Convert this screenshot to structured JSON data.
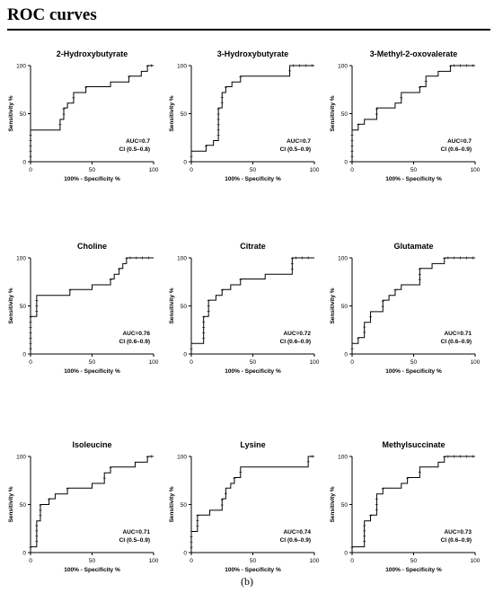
{
  "header": {
    "title": "ROC curves"
  },
  "caption": "(b)",
  "chart_data": [
    {
      "type": "line",
      "title": "2-Hydroxybutyrate",
      "xlabel": "100% - Specificity %",
      "ylabel": "Sensitivity %",
      "xlim": [
        0,
        100
      ],
      "ylim": [
        0,
        100
      ],
      "xticks": [
        0,
        50,
        100
      ],
      "yticks": [
        0,
        50,
        100
      ],
      "annotation": [
        "AUC=0.7",
        "CI (0.5–0.8)"
      ],
      "series": [
        {
          "x": [
            0,
            0,
            24,
            24,
            27,
            27,
            30,
            30,
            35,
            35,
            45,
            45,
            65,
            65,
            80,
            80,
            90,
            90,
            95,
            95,
            100
          ],
          "y": [
            0,
            33,
            33,
            44,
            44,
            56,
            56,
            61,
            61,
            72,
            72,
            78,
            78,
            83,
            83,
            89,
            89,
            94,
            94,
            100,
            100
          ]
        }
      ]
    },
    {
      "type": "line",
      "title": "3-Hydroxybutyrate",
      "xlabel": "100% - Specificity %",
      "ylabel": "Sensitivity %",
      "xlim": [
        0,
        100
      ],
      "ylim": [
        0,
        100
      ],
      "xticks": [
        0,
        50,
        100
      ],
      "yticks": [
        0,
        50,
        100
      ],
      "annotation": [
        "AUC=0.7",
        "CI (0.5–0.9)"
      ],
      "series": [
        {
          "x": [
            0,
            0,
            12,
            12,
            18,
            18,
            22,
            22,
            25,
            25,
            28,
            28,
            33,
            33,
            40,
            40,
            80,
            80,
            100
          ],
          "y": [
            0,
            11,
            11,
            17,
            17,
            22,
            22,
            56,
            56,
            72,
            72,
            78,
            78,
            83,
            83,
            89,
            89,
            100,
            100
          ]
        }
      ]
    },
    {
      "type": "line",
      "title": "3-Methyl-2-oxovalerate",
      "xlabel": "100% - Specificity %",
      "ylabel": "Sensitivity %",
      "xlim": [
        0,
        100
      ],
      "ylim": [
        0,
        100
      ],
      "xticks": [
        0,
        50,
        100
      ],
      "yticks": [
        0,
        50,
        100
      ],
      "annotation": [
        "AUC=0.7",
        "CI (0.6–0.9)"
      ],
      "series": [
        {
          "x": [
            0,
            0,
            5,
            5,
            10,
            10,
            20,
            20,
            35,
            35,
            40,
            40,
            55,
            55,
            60,
            60,
            70,
            70,
            80,
            80,
            100
          ],
          "y": [
            0,
            33,
            33,
            39,
            39,
            44,
            44,
            56,
            56,
            61,
            61,
            72,
            72,
            78,
            78,
            89,
            89,
            94,
            94,
            100,
            100
          ]
        }
      ]
    },
    {
      "type": "line",
      "title": "Choline",
      "xlabel": "100% - Specificity %",
      "ylabel": "Sensitivity %",
      "xlim": [
        0,
        100
      ],
      "ylim": [
        0,
        100
      ],
      "xticks": [
        0,
        50,
        100
      ],
      "yticks": [
        0,
        50,
        100
      ],
      "annotation": [
        "AUC=0.76",
        "CI (0.6–0.9)"
      ],
      "series": [
        {
          "x": [
            0,
            0,
            5,
            5,
            32,
            32,
            50,
            50,
            65,
            65,
            68,
            68,
            72,
            72,
            75,
            75,
            78,
            78,
            100
          ],
          "y": [
            0,
            39,
            39,
            61,
            61,
            67,
            67,
            72,
            72,
            78,
            78,
            83,
            83,
            89,
            89,
            94,
            94,
            100,
            100
          ]
        }
      ]
    },
    {
      "type": "line",
      "title": "Citrate",
      "xlabel": "100% - Specificity %",
      "ylabel": "Sensitivity %",
      "xlim": [
        0,
        100
      ],
      "ylim": [
        0,
        100
      ],
      "xticks": [
        0,
        50,
        100
      ],
      "yticks": [
        0,
        50,
        100
      ],
      "annotation": [
        "AUC=0.72",
        "CI (0.6–0.9)"
      ],
      "series": [
        {
          "x": [
            0,
            0,
            10,
            10,
            14,
            14,
            20,
            20,
            25,
            25,
            32,
            32,
            40,
            40,
            60,
            60,
            82,
            82,
            100
          ],
          "y": [
            0,
            11,
            11,
            39,
            39,
            56,
            56,
            61,
            61,
            67,
            67,
            72,
            72,
            78,
            78,
            83,
            83,
            100,
            100
          ]
        }
      ]
    },
    {
      "type": "line",
      "title": "Glutamate",
      "xlabel": "100% - Specificity %",
      "ylabel": "Sensitivity %",
      "xlim": [
        0,
        100
      ],
      "ylim": [
        0,
        100
      ],
      "xticks": [
        0,
        50,
        100
      ],
      "yticks": [
        0,
        50,
        100
      ],
      "annotation": [
        "AUC=0.71",
        "CI (0.6–0.9)"
      ],
      "series": [
        {
          "x": [
            0,
            0,
            5,
            5,
            10,
            10,
            15,
            15,
            25,
            25,
            30,
            30,
            35,
            35,
            40,
            40,
            55,
            55,
            65,
            65,
            75,
            75,
            100
          ],
          "y": [
            0,
            11,
            11,
            17,
            17,
            33,
            33,
            44,
            44,
            56,
            56,
            61,
            61,
            67,
            67,
            72,
            72,
            89,
            89,
            94,
            94,
            100,
            100
          ]
        }
      ]
    },
    {
      "type": "line",
      "title": "Isoleucine",
      "xlabel": "100% - Specificity %",
      "ylabel": "Sensitivity %",
      "xlim": [
        0,
        100
      ],
      "ylim": [
        0,
        100
      ],
      "xticks": [
        0,
        50,
        100
      ],
      "yticks": [
        0,
        50,
        100
      ],
      "annotation": [
        "AUC=0.71",
        "CI (0.5–0.9)"
      ],
      "series": [
        {
          "x": [
            0,
            0,
            5,
            5,
            8,
            8,
            15,
            15,
            20,
            20,
            30,
            30,
            50,
            50,
            60,
            60,
            65,
            65,
            85,
            85,
            95,
            95,
            100
          ],
          "y": [
            0,
            6,
            6,
            33,
            33,
            50,
            50,
            56,
            56,
            61,
            61,
            67,
            67,
            72,
            72,
            83,
            83,
            89,
            89,
            94,
            94,
            100,
            100
          ]
        }
      ]
    },
    {
      "type": "line",
      "title": "Lysine",
      "xlabel": "100% - Specificity %",
      "ylabel": "Sensitivity %",
      "xlim": [
        0,
        100
      ],
      "ylim": [
        0,
        100
      ],
      "xticks": [
        0,
        50,
        100
      ],
      "yticks": [
        0,
        50,
        100
      ],
      "annotation": [
        "AUC=0.74",
        "CI (0.6–0.9)"
      ],
      "series": [
        {
          "x": [
            0,
            0,
            5,
            5,
            15,
            15,
            25,
            25,
            28,
            28,
            32,
            32,
            35,
            35,
            40,
            40,
            95,
            95,
            100
          ],
          "y": [
            0,
            22,
            22,
            39,
            39,
            44,
            44,
            56,
            56,
            67,
            67,
            72,
            72,
            78,
            78,
            89,
            89,
            100,
            100
          ]
        }
      ]
    },
    {
      "type": "line",
      "title": "Methylsuccinate",
      "xlabel": "100% - Specificity %",
      "ylabel": "Sensitivity %",
      "xlim": [
        0,
        100
      ],
      "ylim": [
        0,
        100
      ],
      "xticks": [
        0,
        50,
        100
      ],
      "yticks": [
        0,
        50,
        100
      ],
      "annotation": [
        "AUC=0.73",
        "CI (0.6–0.9)"
      ],
      "series": [
        {
          "x": [
            0,
            0,
            10,
            10,
            15,
            15,
            20,
            20,
            25,
            25,
            40,
            40,
            45,
            45,
            55,
            55,
            70,
            70,
            75,
            75,
            100
          ],
          "y": [
            0,
            6,
            6,
            33,
            33,
            39,
            39,
            61,
            61,
            67,
            67,
            72,
            72,
            78,
            78,
            89,
            89,
            94,
            94,
            100,
            100
          ]
        }
      ]
    }
  ]
}
